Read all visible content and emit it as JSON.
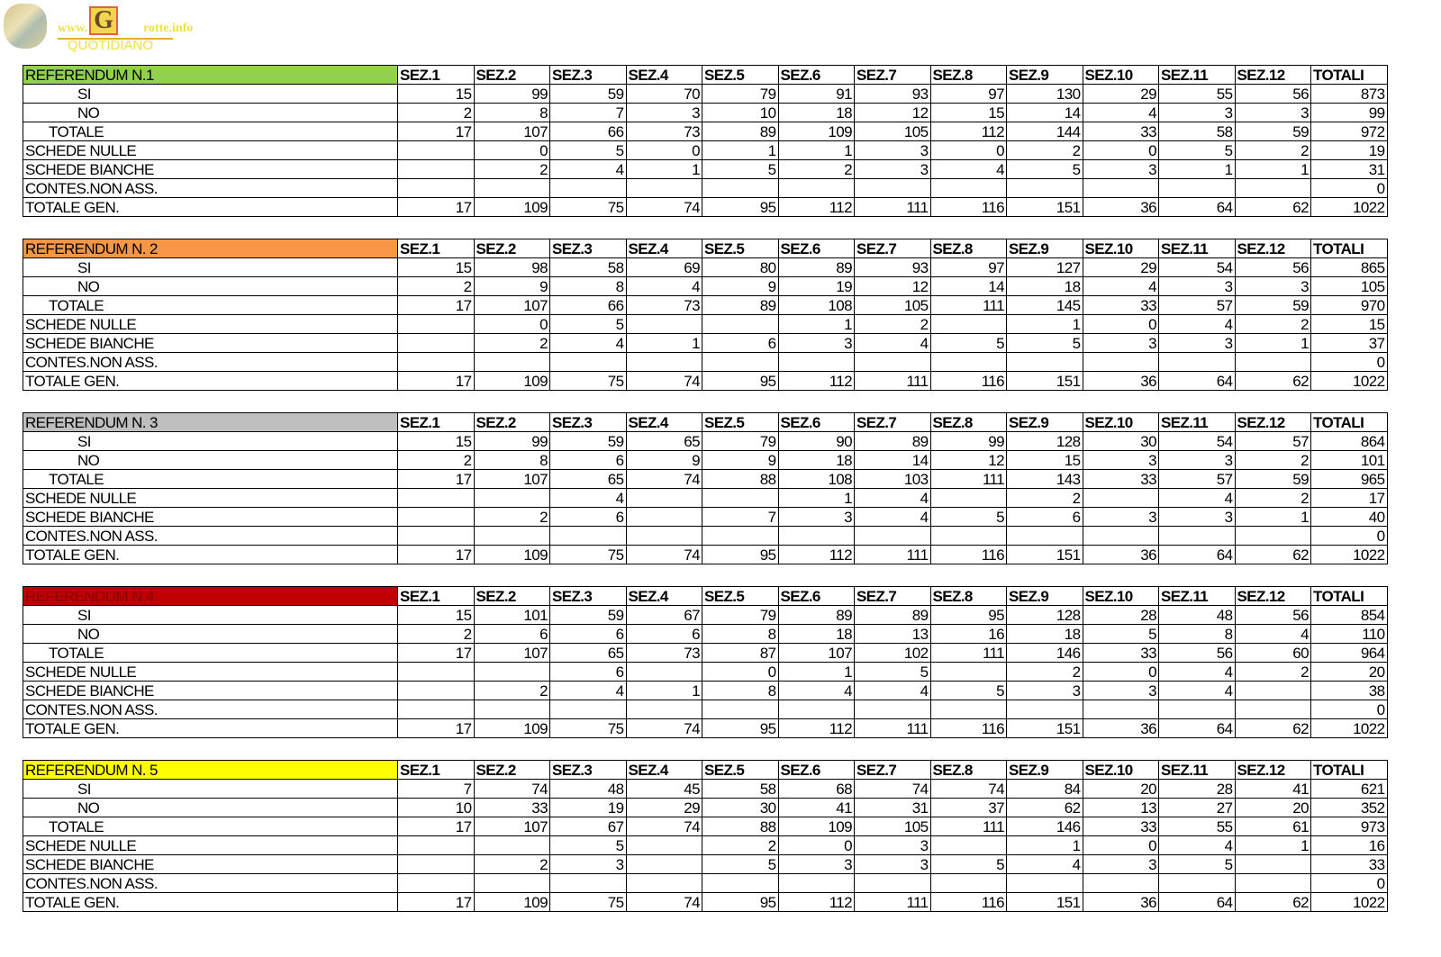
{
  "logo": {
    "site_prefix": "www.",
    "letter": "G",
    "site_suffix": "rotte.info",
    "tagline": "QUOTIDIANO"
  },
  "columns": [
    "SEZ.1",
    "SEZ.2",
    "SEZ.3",
    "SEZ.4",
    "SEZ.5",
    "SEZ.6",
    "SEZ.7",
    "SEZ.8",
    "SEZ.9",
    "SEZ.10",
    "SEZ.11",
    "SEZ.12",
    "TOTALI"
  ],
  "row_labels": [
    "SI",
    "NO",
    "TOTALE",
    "SCHEDE NULLE",
    "SCHEDE BIANCHE",
    "CONTES.NON ASS.",
    "TOTALE GEN."
  ],
  "tables": [
    {
      "title": "REFERENDUM N.1",
      "color": "#92d050",
      "text_color": "#000000",
      "rows": [
        [
          "15",
          "99",
          "59",
          "70",
          "79",
          "91",
          "93",
          "97",
          "130",
          "29",
          "55",
          "56",
          "873"
        ],
        [
          "2",
          "8",
          "7",
          "3",
          "10",
          "18",
          "12",
          "15",
          "14",
          "4",
          "3",
          "3",
          "99"
        ],
        [
          "17",
          "107",
          "66",
          "73",
          "89",
          "109",
          "105",
          "112",
          "144",
          "33",
          "58",
          "59",
          "972"
        ],
        [
          "",
          "0",
          "5",
          "0",
          "1",
          "1",
          "3",
          "0",
          "2",
          "0",
          "5",
          "2",
          "19"
        ],
        [
          "",
          "2",
          "4",
          "1",
          "5",
          "2",
          "3",
          "4",
          "5",
          "3",
          "1",
          "1",
          "31"
        ],
        [
          "",
          "",
          "",
          "",
          "",
          "",
          "",
          "",
          "",
          "",
          "",
          "",
          "0"
        ],
        [
          "17",
          "109",
          "75",
          "74",
          "95",
          "112",
          "111",
          "116",
          "151",
          "36",
          "64",
          "62",
          "1022"
        ]
      ]
    },
    {
      "title": "REFERENDUM N. 2",
      "color": "#f79646",
      "text_color": "#000000",
      "rows": [
        [
          "15",
          "98",
          "58",
          "69",
          "80",
          "89",
          "93",
          "97",
          "127",
          "29",
          "54",
          "56",
          "865"
        ],
        [
          "2",
          "9",
          "8",
          "4",
          "9",
          "19",
          "12",
          "14",
          "18",
          "4",
          "3",
          "3",
          "105"
        ],
        [
          "17",
          "107",
          "66",
          "73",
          "89",
          "108",
          "105",
          "111",
          "145",
          "33",
          "57",
          "59",
          "970"
        ],
        [
          "",
          "0",
          "5",
          "",
          "",
          "1",
          "2",
          "",
          "1",
          "0",
          "4",
          "2",
          "15"
        ],
        [
          "",
          "2",
          "4",
          "1",
          "6",
          "3",
          "4",
          "5",
          "5",
          "3",
          "3",
          "1",
          "37"
        ],
        [
          "",
          "",
          "",
          "",
          "",
          "",
          "",
          "",
          "",
          "",
          "",
          "",
          "0"
        ],
        [
          "17",
          "109",
          "75",
          "74",
          "95",
          "112",
          "111",
          "116",
          "151",
          "36",
          "64",
          "62",
          "1022"
        ]
      ]
    },
    {
      "title": "REFERENDUM N. 3",
      "color": "#bfbfbf",
      "text_color": "#000000",
      "rows": [
        [
          "15",
          "99",
          "59",
          "65",
          "79",
          "90",
          "89",
          "99",
          "128",
          "30",
          "54",
          "57",
          "864"
        ],
        [
          "2",
          "8",
          "6",
          "9",
          "9",
          "18",
          "14",
          "12",
          "15",
          "3",
          "3",
          "2",
          "101"
        ],
        [
          "17",
          "107",
          "65",
          "74",
          "88",
          "108",
          "103",
          "111",
          "143",
          "33",
          "57",
          "59",
          "965"
        ],
        [
          "",
          "",
          "4",
          "",
          "",
          "1",
          "4",
          "",
          "2",
          "",
          "4",
          "2",
          "17"
        ],
        [
          "",
          "2",
          "6",
          "",
          "7",
          "3",
          "4",
          "5",
          "6",
          "3",
          "3",
          "1",
          "40"
        ],
        [
          "",
          "",
          "",
          "",
          "",
          "",
          "",
          "",
          "",
          "",
          "",
          "",
          "0"
        ],
        [
          "17",
          "109",
          "75",
          "74",
          "95",
          "112",
          "111",
          "116",
          "151",
          "36",
          "64",
          "62",
          "1022"
        ]
      ]
    },
    {
      "title": "REFERENDUM N.4",
      "color": "#c00000",
      "text_color": "#8a0000",
      "rows": [
        [
          "15",
          "101",
          "59",
          "67",
          "79",
          "89",
          "89",
          "95",
          "128",
          "28",
          "48",
          "56",
          "854"
        ],
        [
          "2",
          "6",
          "6",
          "6",
          "8",
          "18",
          "13",
          "16",
          "18",
          "5",
          "8",
          "4",
          "110"
        ],
        [
          "17",
          "107",
          "65",
          "73",
          "87",
          "107",
          "102",
          "111",
          "146",
          "33",
          "56",
          "60",
          "964"
        ],
        [
          "",
          "",
          "6",
          "",
          "0",
          "1",
          "5",
          "",
          "2",
          "0",
          "4",
          "2",
          "20"
        ],
        [
          "",
          "2",
          "4",
          "1",
          "8",
          "4",
          "4",
          "5",
          "3",
          "3",
          "4",
          "",
          "38"
        ],
        [
          "",
          "",
          "",
          "",
          "",
          "",
          "",
          "",
          "",
          "",
          "",
          "",
          "0"
        ],
        [
          "17",
          "109",
          "75",
          "74",
          "95",
          "112",
          "111",
          "116",
          "151",
          "36",
          "64",
          "62",
          "1022"
        ]
      ]
    },
    {
      "title": "REFERENDUM N. 5",
      "color": "#ffff00",
      "text_color": "#000000",
      "rows": [
        [
          "7",
          "74",
          "48",
          "45",
          "58",
          "68",
          "74",
          "74",
          "84",
          "20",
          "28",
          "41",
          "621"
        ],
        [
          "10",
          "33",
          "19",
          "29",
          "30",
          "41",
          "31",
          "37",
          "62",
          "13",
          "27",
          "20",
          "352"
        ],
        [
          "17",
          "107",
          "67",
          "74",
          "88",
          "109",
          "105",
          "111",
          "146",
          "33",
          "55",
          "61",
          "973"
        ],
        [
          "",
          "",
          "5",
          "",
          "2",
          "0",
          "3",
          "",
          "1",
          "0",
          "4",
          "1",
          "16"
        ],
        [
          "",
          "2",
          "3",
          "",
          "5",
          "3",
          "3",
          "5",
          "4",
          "3",
          "5",
          "",
          "33"
        ],
        [
          "",
          "",
          "",
          "",
          "",
          "",
          "",
          "",
          "",
          "",
          "",
          "",
          "0"
        ],
        [
          "17",
          "109",
          "75",
          "74",
          "95",
          "112",
          "111",
          "116",
          "151",
          "36",
          "64",
          "62",
          "1022"
        ]
      ]
    }
  ]
}
